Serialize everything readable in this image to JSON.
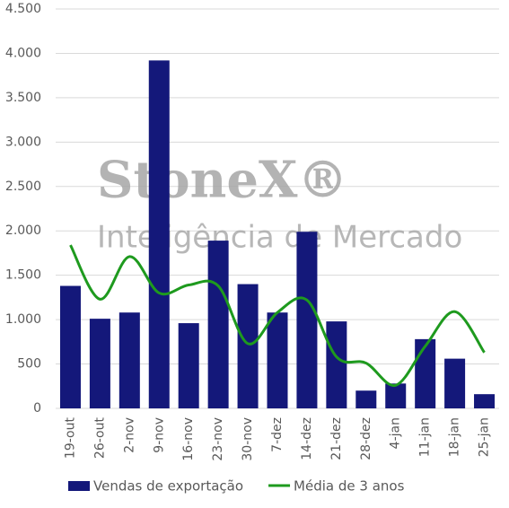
{
  "chart_data": {
    "type": "bar-line",
    "categories": [
      "19-out",
      "26-out",
      "2-nov",
      "9-nov",
      "16-nov",
      "23-nov",
      "30-nov",
      "7-dez",
      "14-dez",
      "21-dez",
      "28-dez",
      "4-jan",
      "11-jan",
      "18-jan",
      "25-jan"
    ],
    "series": [
      {
        "name": "Vendas de exportação",
        "type": "bar",
        "color": "#14187a",
        "values": [
          1380,
          1010,
          1080,
          3920,
          960,
          1890,
          1400,
          1080,
          1990,
          980,
          200,
          280,
          780,
          560,
          160
        ]
      },
      {
        "name": "Média de 3 anos",
        "type": "line",
        "color": "#1e9a1e",
        "values": [
          1840,
          1230,
          1710,
          1300,
          1390,
          1380,
          730,
          1080,
          1220,
          580,
          510,
          260,
          700,
          1090,
          630
        ]
      }
    ],
    "ylim": [
      0,
      4500
    ],
    "yticks": [
      0,
      500,
      {
        "value": 1000,
        "label": "1.000"
      },
      {
        "value": 1500,
        "label": "1.500"
      },
      {
        "value": 2000,
        "label": "2.000"
      },
      {
        "value": 2500,
        "label": "2.500"
      },
      {
        "value": 3000,
        "label": "3.000"
      },
      {
        "value": 3500,
        "label": "3.500"
      },
      {
        "value": 4000,
        "label": "4.000"
      },
      {
        "value": 4500,
        "label": "4.500"
      }
    ],
    "grid": true,
    "legend": "bottom",
    "annotations": [
      "StoneX®",
      "Inteligência de Mercado"
    ]
  }
}
